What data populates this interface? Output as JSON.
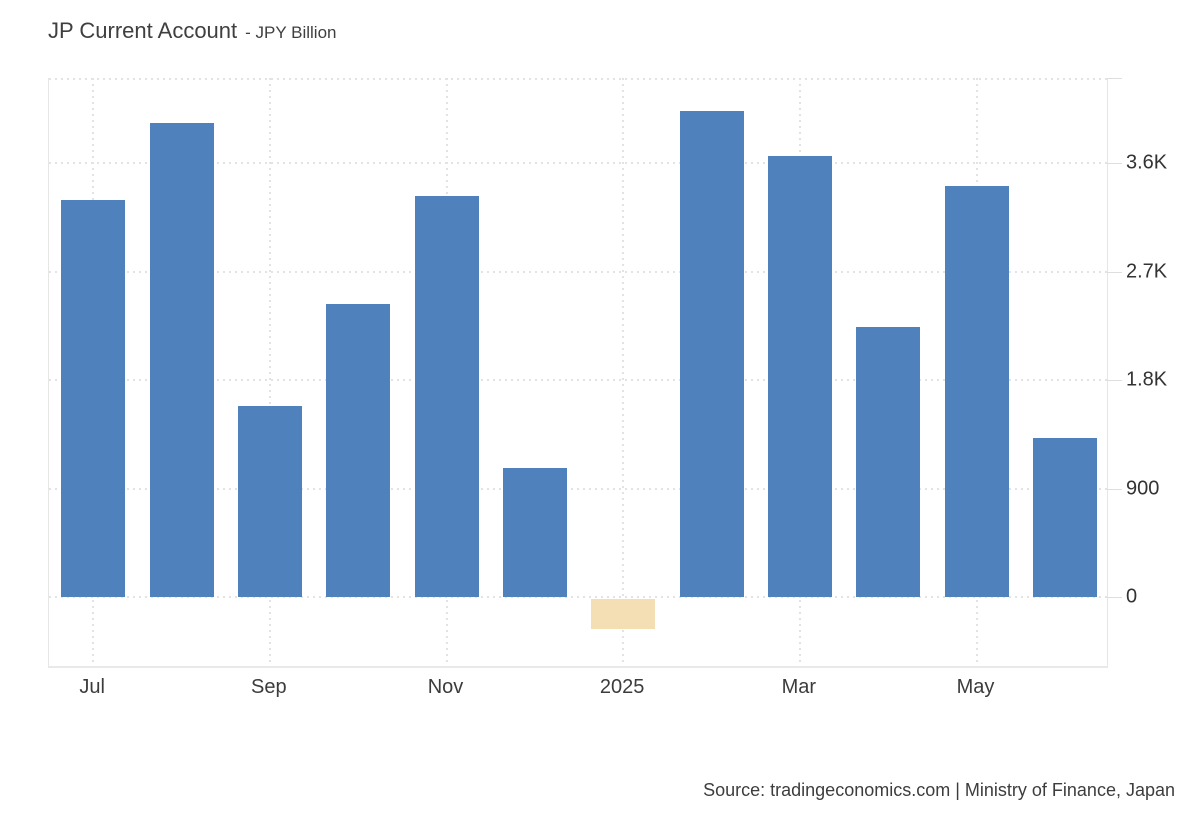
{
  "header": {
    "title": "JP Current Account",
    "subtitle": "- JPY Billion"
  },
  "footer": {
    "source_text": "Source: tradingeconomics.com | Ministry of Finance, Japan"
  },
  "colors": {
    "bar_positive": "#4f81bd",
    "bar_negative": "#f4deb3",
    "gridline": "#e3e3e3",
    "plot_border": "#e6e6e6",
    "label_text": "#3c3c3c"
  },
  "chart_data": {
    "type": "bar",
    "title": "JP Current Account",
    "unit": "JPY Billion",
    "categories": [
      "Jul 2024",
      "Aug 2024",
      "Sep 2024",
      "Oct 2024",
      "Nov 2024",
      "Dec 2024",
      "Jan 2025",
      "Feb 2025",
      "Mar 2025",
      "Apr 2025",
      "May 2025",
      "Jun 2025"
    ],
    "values": [
      3300,
      3940,
      1590,
      2430,
      3330,
      1070,
      -270,
      4040,
      3660,
      2240,
      3410,
      1320
    ],
    "bar_colors": [
      "#4f81bd",
      "#4f81bd",
      "#4f81bd",
      "#4f81bd",
      "#4f81bd",
      "#4f81bd",
      "#f4deb3",
      "#4f81bd",
      "#4f81bd",
      "#4f81bd",
      "#4f81bd",
      "#4f81bd"
    ],
    "x_tick_labels": [
      {
        "label": "Jul",
        "month_index": 0
      },
      {
        "label": "Sep",
        "month_index": 2
      },
      {
        "label": "Nov",
        "month_index": 4
      },
      {
        "label": "2025",
        "month_index": 6
      },
      {
        "label": "Mar",
        "month_index": 8
      },
      {
        "label": "May",
        "month_index": 10
      }
    ],
    "y_ticks": [
      {
        "value": 0,
        "label": "0"
      },
      {
        "value": 900,
        "label": "900"
      },
      {
        "value": 1800,
        "label": "1.8K"
      },
      {
        "value": 2700,
        "label": "2.7K"
      },
      {
        "value": 3600,
        "label": "3.6K"
      }
    ],
    "ylim": [
      -590,
      4310
    ],
    "grid": "dotted",
    "legend": "none",
    "ylabel": "",
    "xlabel": ""
  }
}
